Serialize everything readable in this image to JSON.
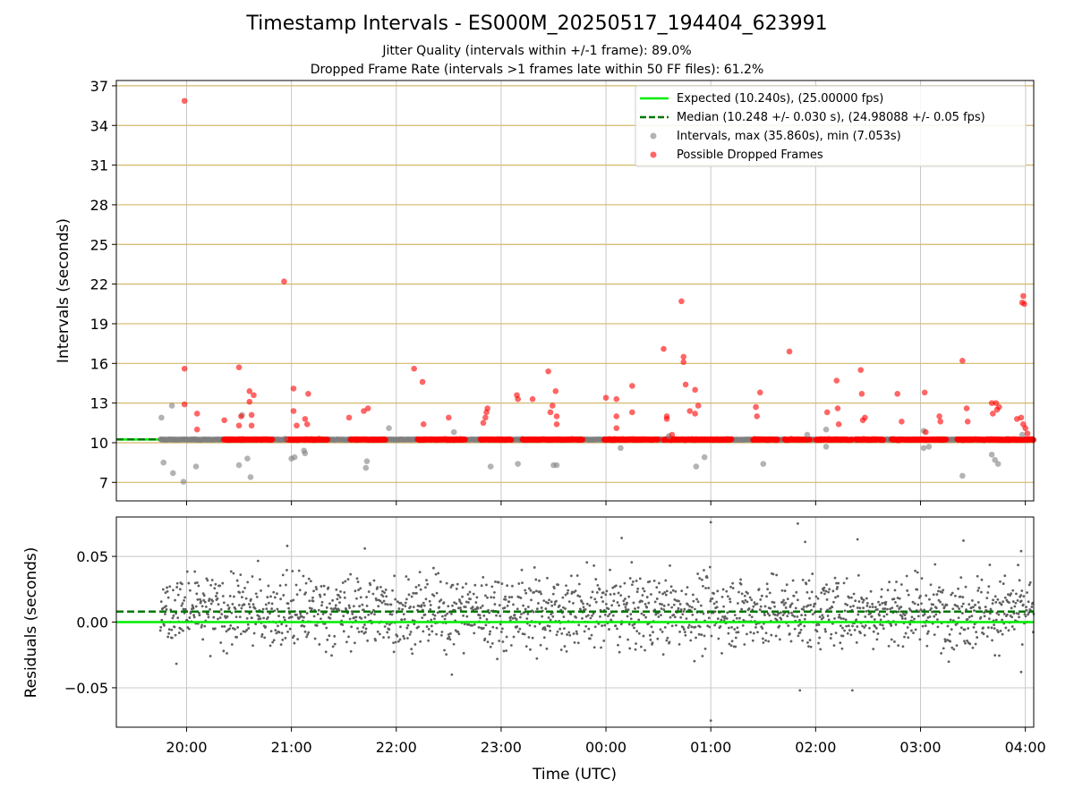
{
  "figure": {
    "title": "Timestamp Intervals - ES000M_20250517_194404_623991",
    "subtitle_1": "Jitter Quality (intervals within +/-1 frame): 89.0%",
    "subtitle_2": "Dropped Frame Rate (intervals >1 frames late within 50 FF files): 61.2%"
  },
  "colors": {
    "expected": "#00ee00",
    "median": "#007700",
    "intervals": "#808080",
    "dropped": "#ff0000",
    "hgrid_top": "#d4b86a",
    "grid": "#c8c8c8",
    "residual_points": "#606060"
  },
  "chart_data": [
    {
      "type": "scatter",
      "ylabel": "Intervals (seconds)",
      "xlabel": "",
      "ylim": [
        5.6,
        37.4
      ],
      "yticks": [
        7,
        10,
        13,
        16,
        19,
        22,
        25,
        28,
        31,
        34,
        37
      ],
      "xlim_hours": [
        19.33,
        28.08
      ],
      "xticks": [
        "20:00",
        "21:00",
        "22:00",
        "23:00",
        "00:00",
        "01:00",
        "02:00",
        "03:00",
        "04:00"
      ],
      "grid": "on",
      "legend_position": "top-right",
      "legend": [
        "Expected (10.240s), (25.00000 fps)",
        "Median (10.248 +/- 0.030 s), (24.98088 +/- 0.05 fps)",
        "Intervals, max (35.860s), min (7.053s)",
        "Possible Dropped Frames"
      ],
      "series": [
        {
          "name": "Expected (10.240s), (25.00000 fps)",
          "kind": "hline",
          "y": 10.24
        },
        {
          "name": "Median (10.248 +/- 0.030 s), (24.98088 +/- 0.05 fps)",
          "kind": "hline",
          "y": 10.248
        },
        {
          "name": "Intervals, max (35.860s), min (7.053s)",
          "kind": "scatter",
          "baseline": 10.24,
          "x_range": [
            19.75,
            28.08
          ],
          "outliers": [
            [
              19.76,
              11.9
            ],
            [
              19.78,
              8.5
            ],
            [
              19.86,
              12.8
            ],
            [
              19.87,
              7.7
            ],
            [
              19.97,
              7.05
            ],
            [
              20.09,
              8.2
            ],
            [
              20.5,
              8.3
            ],
            [
              20.53,
              12.1
            ],
            [
              20.58,
              8.8
            ],
            [
              20.61,
              7.4
            ],
            [
              20.94,
              10.3
            ],
            [
              21.0,
              8.8
            ],
            [
              21.03,
              8.9
            ],
            [
              21.12,
              9.4
            ],
            [
              21.13,
              9.2
            ],
            [
              21.71,
              8.1
            ],
            [
              21.72,
              8.6
            ],
            [
              21.93,
              11.1
            ],
            [
              22.55,
              10.8
            ],
            [
              22.9,
              8.2
            ],
            [
              23.16,
              8.4
            ],
            [
              23.5,
              8.3
            ],
            [
              23.53,
              8.3
            ],
            [
              24.14,
              9.6
            ],
            [
              24.6,
              10.5
            ],
            [
              24.86,
              8.2
            ],
            [
              24.94,
              8.9
            ],
            [
              25.5,
              8.4
            ],
            [
              25.92,
              10.6
            ],
            [
              26.1,
              11.0
            ],
            [
              26.1,
              9.7
            ],
            [
              27.03,
              9.6
            ],
            [
              27.03,
              10.9
            ],
            [
              27.08,
              9.7
            ],
            [
              27.4,
              7.5
            ],
            [
              27.68,
              9.1
            ],
            [
              27.71,
              8.7
            ],
            [
              27.74,
              8.4
            ],
            [
              27.97,
              10.6
            ]
          ]
        },
        {
          "name": "Possible Dropped Frames",
          "kind": "scatter",
          "baseline": 10.24,
          "x_range": [
            20.35,
            28.08
          ],
          "outliers": [
            [
              19.98,
              35.86
            ],
            [
              19.98,
              15.6
            ],
            [
              19.98,
              12.9
            ],
            [
              20.1,
              12.2
            ],
            [
              20.1,
              11.0
            ],
            [
              20.36,
              11.7
            ],
            [
              20.5,
              15.7
            ],
            [
              20.5,
              11.3
            ],
            [
              20.52,
              12.0
            ],
            [
              20.6,
              13.9
            ],
            [
              20.6,
              13.1
            ],
            [
              20.62,
              12.1
            ],
            [
              20.62,
              11.3
            ],
            [
              20.64,
              13.6
            ],
            [
              20.93,
              22.2
            ],
            [
              21.02,
              14.1
            ],
            [
              21.02,
              12.4
            ],
            [
              21.05,
              11.3
            ],
            [
              21.13,
              11.8
            ],
            [
              21.15,
              11.4
            ],
            [
              21.16,
              13.7
            ],
            [
              21.55,
              11.9
            ],
            [
              21.69,
              12.4
            ],
            [
              21.73,
              12.6
            ],
            [
              22.17,
              15.6
            ],
            [
              22.25,
              14.6
            ],
            [
              22.26,
              11.4
            ],
            [
              22.5,
              11.9
            ],
            [
              22.83,
              11.5
            ],
            [
              22.85,
              11.9
            ],
            [
              22.86,
              12.3
            ],
            [
              22.87,
              12.6
            ],
            [
              23.15,
              13.6
            ],
            [
              23.16,
              13.3
            ],
            [
              23.3,
              13.3
            ],
            [
              23.45,
              15.4
            ],
            [
              23.47,
              12.3
            ],
            [
              23.49,
              12.8
            ],
            [
              23.52,
              13.9
            ],
            [
              23.53,
              12.0
            ],
            [
              23.53,
              11.4
            ],
            [
              24.0,
              13.4
            ],
            [
              24.1,
              12.0
            ],
            [
              24.1,
              11.1
            ],
            [
              24.1,
              13.3
            ],
            [
              24.25,
              14.3
            ],
            [
              24.25,
              12.3
            ],
            [
              24.55,
              17.1
            ],
            [
              24.58,
              11.8
            ],
            [
              24.58,
              12.0
            ],
            [
              24.63,
              10.6
            ],
            [
              24.72,
              20.7
            ],
            [
              24.74,
              16.5
            ],
            [
              24.74,
              16.1
            ],
            [
              24.76,
              14.4
            ],
            [
              24.8,
              12.4
            ],
            [
              24.85,
              14.0
            ],
            [
              24.85,
              12.2
            ],
            [
              24.88,
              12.8
            ],
            [
              25.43,
              12.7
            ],
            [
              25.44,
              12.0
            ],
            [
              25.47,
              13.8
            ],
            [
              25.75,
              16.9
            ],
            [
              26.11,
              12.3
            ],
            [
              26.2,
              14.7
            ],
            [
              26.21,
              12.6
            ],
            [
              26.22,
              11.4
            ],
            [
              26.43,
              15.5
            ],
            [
              26.44,
              13.7
            ],
            [
              26.45,
              11.7
            ],
            [
              26.47,
              11.9
            ],
            [
              26.78,
              13.7
            ],
            [
              26.82,
              11.6
            ],
            [
              27.04,
              13.8
            ],
            [
              27.05,
              10.8
            ],
            [
              27.18,
              12.0
            ],
            [
              27.19,
              11.6
            ],
            [
              27.4,
              16.2
            ],
            [
              27.44,
              12.6
            ],
            [
              27.45,
              11.6
            ],
            [
              27.68,
              13.0
            ],
            [
              27.69,
              12.2
            ],
            [
              27.72,
              13.0
            ],
            [
              27.73,
              12.5
            ],
            [
              27.75,
              12.7
            ],
            [
              27.97,
              20.6
            ],
            [
              27.98,
              21.1
            ],
            [
              27.99,
              20.5
            ],
            [
              27.92,
              11.8
            ],
            [
              27.96,
              11.9
            ],
            [
              27.98,
              11.4
            ],
            [
              28.0,
              11.1
            ],
            [
              28.02,
              10.7
            ]
          ]
        }
      ]
    },
    {
      "type": "scatter",
      "ylabel": "Residuals (seconds)",
      "xlabel": "Time (UTC)",
      "ylim": [
        -0.08,
        0.08
      ],
      "yticks": [
        -0.05,
        0.0,
        0.05
      ],
      "ytick_labels": [
        "−0.05",
        "0.00",
        "0.05"
      ],
      "xlim_hours": [
        19.33,
        28.08
      ],
      "xticks": [
        "20:00",
        "21:00",
        "22:00",
        "23:00",
        "00:00",
        "01:00",
        "02:00",
        "03:00",
        "04:00"
      ],
      "grid": "on",
      "series": [
        {
          "kind": "hline",
          "y": 0.0,
          "role": "expected"
        },
        {
          "kind": "hline",
          "y": 0.008,
          "role": "median"
        },
        {
          "kind": "scatter",
          "role": "residuals",
          "center": 0.008,
          "spread": 0.014,
          "x_range": [
            19.75,
            28.08
          ],
          "extremes": [
            [
              24.15,
              0.064
            ],
            [
              25.0,
              0.076
            ],
            [
              25.0,
              -0.075
            ],
            [
              25.83,
              0.075
            ],
            [
              25.9,
              0.061
            ],
            [
              26.4,
              0.063
            ],
            [
              26.35,
              -0.052
            ],
            [
              25.85,
              -0.052
            ],
            [
              27.41,
              0.062
            ],
            [
              27.96,
              0.054
            ],
            [
              20.96,
              0.058
            ],
            [
              21.7,
              0.056
            ],
            [
              27.96,
              -0.038
            ],
            [
              22.53,
              -0.04
            ]
          ]
        }
      ]
    }
  ]
}
